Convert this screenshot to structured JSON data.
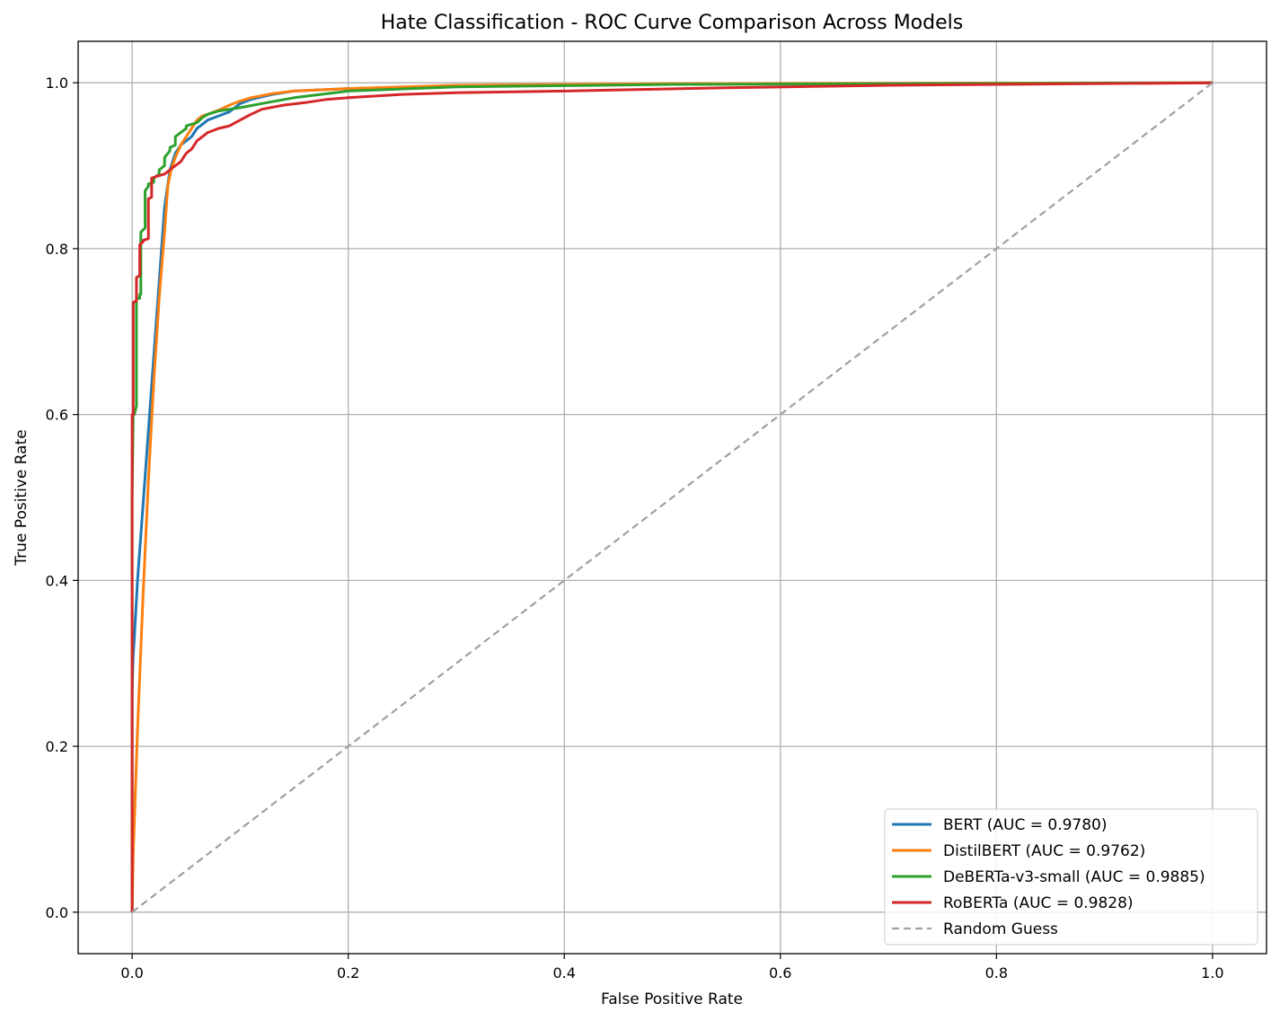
{
  "chart_data": {
    "type": "line",
    "title": "Hate Classification - ROC Curve Comparison Across Models",
    "xlabel": "False Positive Rate",
    "ylabel": "True Positive Rate",
    "xlim": [
      -0.05,
      1.05
    ],
    "ylim": [
      -0.05,
      1.05
    ],
    "xticks": [
      0.0,
      0.2,
      0.4,
      0.6,
      0.8,
      1.0
    ],
    "yticks": [
      0.0,
      0.2,
      0.4,
      0.6,
      0.8,
      1.0
    ],
    "xtick_labels": [
      "0.0",
      "0.2",
      "0.4",
      "0.6",
      "0.8",
      "1.0"
    ],
    "ytick_labels": [
      "0.0",
      "0.2",
      "0.4",
      "0.6",
      "0.8",
      "1.0"
    ],
    "grid": true,
    "legend_position": "lower-right",
    "series": [
      {
        "name": "BERT (AUC = 0.9780)",
        "color": "#1f77b4",
        "style": "solid",
        "x": [
          0.0,
          0.0,
          0.0005,
          0.001,
          0.002,
          0.005,
          0.01,
          0.015,
          0.02,
          0.025,
          0.03,
          0.035,
          0.04,
          0.045,
          0.05,
          0.055,
          0.06,
          0.065,
          0.07,
          0.08,
          0.09,
          0.1,
          0.11,
          0.13,
          0.15,
          0.2,
          0.3,
          0.5,
          1.0
        ],
        "y": [
          0.0,
          0.26,
          0.29,
          0.31,
          0.33,
          0.4,
          0.49,
          0.58,
          0.67,
          0.76,
          0.85,
          0.895,
          0.915,
          0.925,
          0.93,
          0.935,
          0.945,
          0.95,
          0.955,
          0.96,
          0.965,
          0.975,
          0.98,
          0.986,
          0.99,
          0.993,
          0.996,
          0.999,
          1.0
        ]
      },
      {
        "name": "DistilBERT (AUC = 0.9762)",
        "color": "#ff7f0e",
        "style": "solid",
        "x": [
          0.0,
          0.001,
          0.005,
          0.01,
          0.015,
          0.02,
          0.025,
          0.03,
          0.033,
          0.036,
          0.04,
          0.045,
          0.05,
          0.055,
          0.06,
          0.065,
          0.07,
          0.08,
          0.09,
          0.1,
          0.11,
          0.13,
          0.15,
          0.2,
          0.3,
          0.5,
          1.0
        ],
        "y": [
          0.0,
          0.07,
          0.22,
          0.38,
          0.52,
          0.64,
          0.74,
          0.82,
          0.875,
          0.895,
          0.91,
          0.925,
          0.935,
          0.945,
          0.955,
          0.96,
          0.962,
          0.967,
          0.973,
          0.978,
          0.982,
          0.987,
          0.99,
          0.993,
          0.997,
          0.999,
          1.0
        ]
      },
      {
        "name": "DeBERTa-v3-small (AUC = 0.9885)",
        "color": "#2ca02c",
        "style": "solid",
        "x": [
          0.0,
          0.0,
          0.001,
          0.002,
          0.003,
          0.004,
          0.004,
          0.007,
          0.007,
          0.008,
          0.008,
          0.012,
          0.012,
          0.015,
          0.015,
          0.02,
          0.02,
          0.025,
          0.025,
          0.03,
          0.03,
          0.035,
          0.035,
          0.04,
          0.04,
          0.045,
          0.05,
          0.05,
          0.06,
          0.065,
          0.07,
          0.08,
          0.09,
          0.1,
          0.12,
          0.15,
          0.2,
          0.3,
          0.5,
          1.0
        ],
        "y": [
          0.0,
          0.5,
          0.6,
          0.6,
          0.605,
          0.61,
          0.74,
          0.74,
          0.745,
          0.745,
          0.82,
          0.825,
          0.87,
          0.875,
          0.878,
          0.88,
          0.885,
          0.89,
          0.895,
          0.9,
          0.91,
          0.918,
          0.922,
          0.925,
          0.935,
          0.94,
          0.945,
          0.948,
          0.952,
          0.958,
          0.962,
          0.966,
          0.968,
          0.97,
          0.975,
          0.982,
          0.99,
          0.995,
          0.998,
          1.0
        ]
      },
      {
        "name": "RoBERTa (AUC = 0.9828)",
        "color": "#d62728",
        "style": "solid",
        "x": [
          0.0,
          0.0,
          0.001,
          0.001,
          0.004,
          0.004,
          0.007,
          0.007,
          0.01,
          0.01,
          0.015,
          0.015,
          0.018,
          0.018,
          0.022,
          0.025,
          0.03,
          0.035,
          0.04,
          0.045,
          0.05,
          0.055,
          0.06,
          0.07,
          0.08,
          0.09,
          0.1,
          0.11,
          0.12,
          0.14,
          0.16,
          0.18,
          0.2,
          0.25,
          0.3,
          0.4,
          0.55,
          0.7,
          1.0
        ],
        "y": [
          0.0,
          0.6,
          0.6,
          0.735,
          0.737,
          0.765,
          0.768,
          0.805,
          0.808,
          0.81,
          0.812,
          0.86,
          0.862,
          0.885,
          0.887,
          0.888,
          0.89,
          0.895,
          0.9,
          0.905,
          0.915,
          0.92,
          0.93,
          0.94,
          0.945,
          0.948,
          0.955,
          0.962,
          0.968,
          0.973,
          0.976,
          0.98,
          0.982,
          0.986,
          0.988,
          0.99,
          0.994,
          0.997,
          1.0
        ]
      },
      {
        "name": "Random Guess",
        "color": "#a0a0a0",
        "style": "dashed",
        "x": [
          0.0,
          1.0
        ],
        "y": [
          0.0,
          1.0
        ]
      }
    ]
  }
}
